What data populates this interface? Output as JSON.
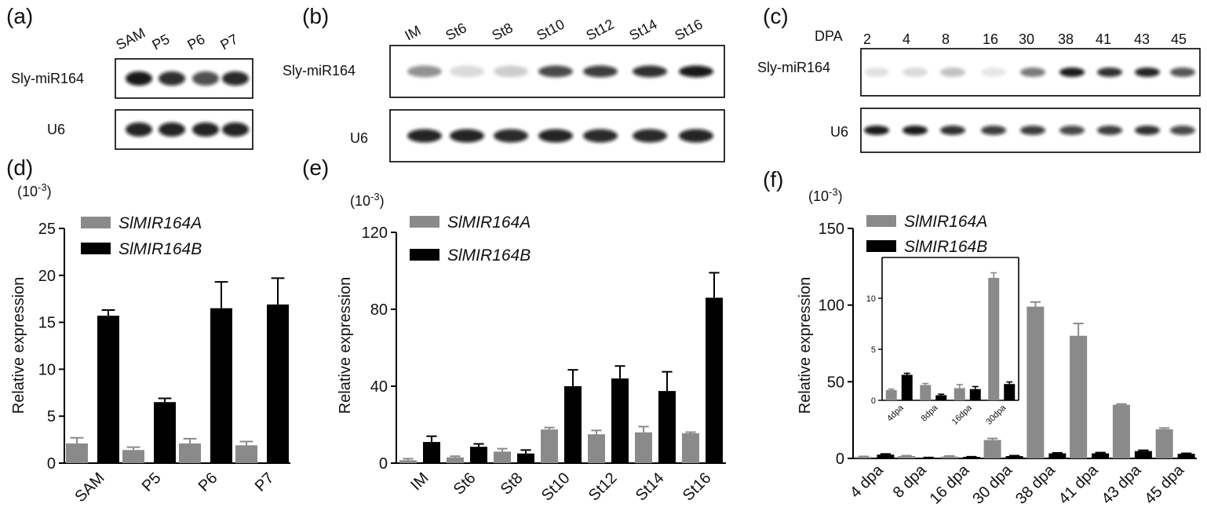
{
  "panels": {
    "a": {
      "letter": "(a)",
      "lanes": [
        "SAM",
        "P5",
        "P6",
        "P7"
      ],
      "rows": [
        {
          "label": "Sly-miR164",
          "intensity": [
            0.95,
            0.85,
            0.72,
            0.88
          ]
        },
        {
          "label": "U6",
          "intensity": [
            0.9,
            0.9,
            0.9,
            0.9
          ]
        }
      ]
    },
    "b": {
      "letter": "(b)",
      "lanes": [
        "IM",
        "St6",
        "St8",
        "St10",
        "St12",
        "St14",
        "St16"
      ],
      "rows": [
        {
          "label": "Sly-miR164",
          "intensity": [
            0.45,
            0.15,
            0.2,
            0.75,
            0.8,
            0.85,
            0.95
          ]
        },
        {
          "label": "U6",
          "intensity": [
            0.9,
            0.9,
            0.88,
            0.9,
            0.88,
            0.88,
            0.9
          ]
        }
      ]
    },
    "c": {
      "letter": "(c)",
      "lane_prefix": "DPA",
      "lanes": [
        "2",
        "4",
        "8",
        "16",
        "30",
        "38",
        "41",
        "43",
        "45"
      ],
      "rows": [
        {
          "label": "Sly-miR164",
          "intensity": [
            0.12,
            0.15,
            0.25,
            0.1,
            0.55,
            0.95,
            0.85,
            0.9,
            0.7
          ]
        },
        {
          "label": "U6",
          "intensity": [
            0.95,
            0.95,
            0.85,
            0.8,
            0.8,
            0.75,
            0.8,
            0.85,
            0.75
          ]
        }
      ]
    },
    "d": {
      "letter": "(d)"
    },
    "e": {
      "letter": "(e)"
    },
    "f": {
      "letter": "(f)"
    }
  },
  "colors": {
    "seriesA": "#8a8a8a",
    "seriesB": "#000000",
    "blotBackground": "#ffffff",
    "band": "#111111"
  },
  "chart_data": [
    {
      "type": "bar",
      "panel": "d",
      "title": "",
      "xlabel": "",
      "ylabel": "Relative expression",
      "scale_label": "(10-3)",
      "ylim": [
        0,
        25
      ],
      "yticks": [
        0,
        5,
        10,
        15,
        20,
        25
      ],
      "categories": [
        "SAM",
        "P5",
        "P6",
        "P7"
      ],
      "series": [
        {
          "name": "SlMIR164A",
          "values": [
            2.1,
            1.4,
            2.1,
            1.9
          ],
          "errors": [
            0.6,
            0.3,
            0.5,
            0.4
          ]
        },
        {
          "name": "SlMIR164B",
          "values": [
            15.7,
            6.5,
            16.5,
            16.9
          ],
          "errors": [
            0.6,
            0.4,
            2.8,
            2.8
          ]
        }
      ],
      "legend": "top-left"
    },
    {
      "type": "bar",
      "panel": "e",
      "title": "",
      "xlabel": "",
      "ylabel": "Relative expression",
      "scale_label": "(10-3)",
      "ylim": [
        0,
        120
      ],
      "yticks": [
        0,
        40,
        80,
        120
      ],
      "categories": [
        "IM",
        "St6",
        "St8",
        "St10",
        "St12",
        "St14",
        "St16"
      ],
      "series": [
        {
          "name": "SlMIR164A",
          "values": [
            1.5,
            3,
            6,
            17.5,
            15,
            16,
            15.5
          ],
          "errors": [
            0.8,
            0.6,
            1.5,
            1,
            2,
            3,
            0.6
          ]
        },
        {
          "name": "SlMIR164B",
          "values": [
            11,
            8.5,
            5,
            40,
            44,
            37.5,
            86
          ],
          "errors": [
            3,
            1.5,
            1.8,
            8.5,
            6.5,
            10,
            13
          ]
        }
      ],
      "legend": "top-left"
    },
    {
      "type": "bar",
      "panel": "f",
      "title": "",
      "xlabel": "",
      "ylabel": "Relative expression",
      "scale_label": "(10-3)",
      "ylim": [
        0,
        150
      ],
      "yticks": [
        0,
        50,
        100,
        150
      ],
      "categories": [
        "4 dpa",
        "8 dpa",
        "16 dpa",
        "30 dpa",
        "38 dpa",
        "41 dpa",
        "43 dpa",
        "45 dpa"
      ],
      "series": [
        {
          "name": "SlMIR164A",
          "values": [
            1,
            1.5,
            1.2,
            12,
            99,
            80,
            35,
            19
          ],
          "errors": [
            0.3,
            0.3,
            0.4,
            1,
            3,
            8,
            0.5,
            0.8
          ]
        },
        {
          "name": "SlMIR164B",
          "values": [
            2.5,
            0.5,
            1,
            1.5,
            3.3,
            3.3,
            4.8,
            3
          ],
          "errors": [
            0.4,
            0.1,
            0.1,
            0.3,
            0.3,
            0.5,
            0.5,
            0.3
          ]
        }
      ],
      "legend": "top-left",
      "inset": {
        "type": "bar",
        "ylim": [
          0,
          14
        ],
        "yticks": [
          0,
          5,
          10
        ],
        "categories": [
          "4dpa",
          "8dpa",
          "16dpa",
          "30dpa"
        ],
        "series": [
          {
            "name": "SlMIR164A",
            "values": [
              1,
              1.5,
              1.2,
              12
            ],
            "errors": [
              0.1,
              0.15,
              0.35,
              0.5
            ]
          },
          {
            "name": "SlMIR164B",
            "values": [
              2.5,
              0.5,
              1.1,
              1.6
            ],
            "errors": [
              0.15,
              0.1,
              0.25,
              0.2
            ]
          }
        ]
      }
    }
  ]
}
